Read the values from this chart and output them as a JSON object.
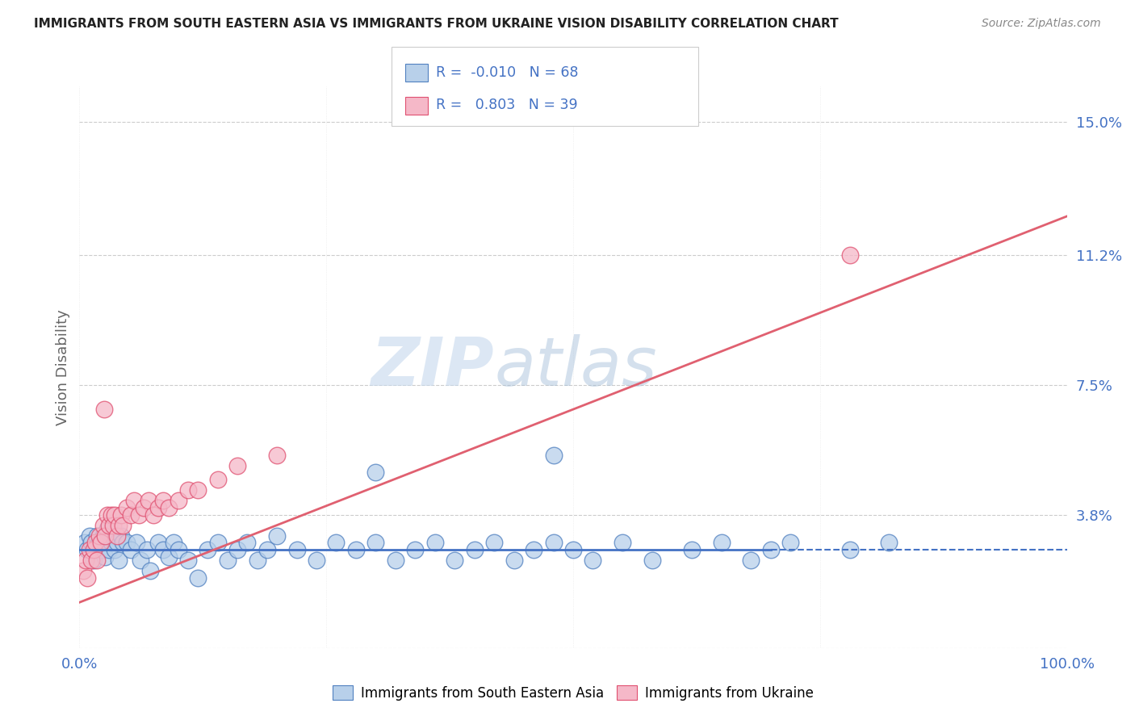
{
  "title": "IMMIGRANTS FROM SOUTH EASTERN ASIA VS IMMIGRANTS FROM UKRAINE VISION DISABILITY CORRELATION CHART",
  "source": "Source: ZipAtlas.com",
  "ylabel": "Vision Disability",
  "watermark_zip": "ZIP",
  "watermark_atlas": "atlas",
  "xlim": [
    0.0,
    1.0
  ],
  "ylim": [
    0.0,
    0.16
  ],
  "yticks": [
    0.0,
    0.038,
    0.075,
    0.112,
    0.15
  ],
  "ytick_labels": [
    "",
    "3.8%",
    "7.5%",
    "11.2%",
    "15.0%"
  ],
  "xtick_labels": [
    "0.0%",
    "100.0%"
  ],
  "blue_R": -0.01,
  "blue_N": 68,
  "pink_R": 0.803,
  "pink_N": 39,
  "blue_fill": "#b8d0ea",
  "pink_fill": "#f5b8c8",
  "blue_edge": "#5080c0",
  "pink_edge": "#e05070",
  "blue_line": "#4472c4",
  "pink_line": "#e06070",
  "legend_label1": "Immigrants from South Eastern Asia",
  "legend_label2": "Immigrants from Ukraine",
  "blue_scatter_x": [
    0.005,
    0.008,
    0.01,
    0.012,
    0.014,
    0.016,
    0.018,
    0.02,
    0.022,
    0.024,
    0.026,
    0.028,
    0.03,
    0.032,
    0.034,
    0.036,
    0.038,
    0.04,
    0.042,
    0.044,
    0.048,
    0.052,
    0.058,
    0.062,
    0.068,
    0.072,
    0.08,
    0.085,
    0.09,
    0.095,
    0.1,
    0.11,
    0.12,
    0.13,
    0.14,
    0.15,
    0.16,
    0.17,
    0.18,
    0.19,
    0.2,
    0.22,
    0.24,
    0.26,
    0.28,
    0.3,
    0.32,
    0.34,
    0.36,
    0.38,
    0.4,
    0.42,
    0.44,
    0.46,
    0.48,
    0.5,
    0.52,
    0.55,
    0.58,
    0.62,
    0.65,
    0.68,
    0.7,
    0.72,
    0.3,
    0.48,
    0.78,
    0.82
  ],
  "blue_scatter_y": [
    0.03,
    0.028,
    0.032,
    0.03,
    0.025,
    0.028,
    0.032,
    0.03,
    0.028,
    0.032,
    0.026,
    0.034,
    0.028,
    0.03,
    0.032,
    0.028,
    0.03,
    0.025,
    0.032,
    0.03,
    0.03,
    0.028,
    0.03,
    0.025,
    0.028,
    0.022,
    0.03,
    0.028,
    0.026,
    0.03,
    0.028,
    0.025,
    0.02,
    0.028,
    0.03,
    0.025,
    0.028,
    0.03,
    0.025,
    0.028,
    0.032,
    0.028,
    0.025,
    0.03,
    0.028,
    0.03,
    0.025,
    0.028,
    0.03,
    0.025,
    0.028,
    0.03,
    0.025,
    0.028,
    0.03,
    0.028,
    0.025,
    0.03,
    0.025,
    0.028,
    0.03,
    0.025,
    0.028,
    0.03,
    0.05,
    0.055,
    0.028,
    0.03
  ],
  "pink_scatter_x": [
    0.004,
    0.006,
    0.008,
    0.01,
    0.012,
    0.014,
    0.016,
    0.018,
    0.02,
    0.022,
    0.024,
    0.026,
    0.028,
    0.03,
    0.032,
    0.034,
    0.036,
    0.038,
    0.04,
    0.042,
    0.044,
    0.048,
    0.052,
    0.055,
    0.06,
    0.065,
    0.07,
    0.075,
    0.08,
    0.085,
    0.09,
    0.1,
    0.11,
    0.12,
    0.14,
    0.16,
    0.2,
    0.025,
    0.78
  ],
  "pink_scatter_y": [
    0.022,
    0.025,
    0.02,
    0.028,
    0.025,
    0.028,
    0.03,
    0.025,
    0.032,
    0.03,
    0.035,
    0.032,
    0.038,
    0.035,
    0.038,
    0.035,
    0.038,
    0.032,
    0.035,
    0.038,
    0.035,
    0.04,
    0.038,
    0.042,
    0.038,
    0.04,
    0.042,
    0.038,
    0.04,
    0.042,
    0.04,
    0.042,
    0.045,
    0.045,
    0.048,
    0.052,
    0.055,
    0.068,
    0.112
  ],
  "blue_line_x_solid_end": 0.7,
  "blue_line_y": 0.028,
  "pink_line_x0": 0.0,
  "pink_line_y0": 0.013,
  "pink_line_x1": 1.0,
  "pink_line_y1": 0.123
}
